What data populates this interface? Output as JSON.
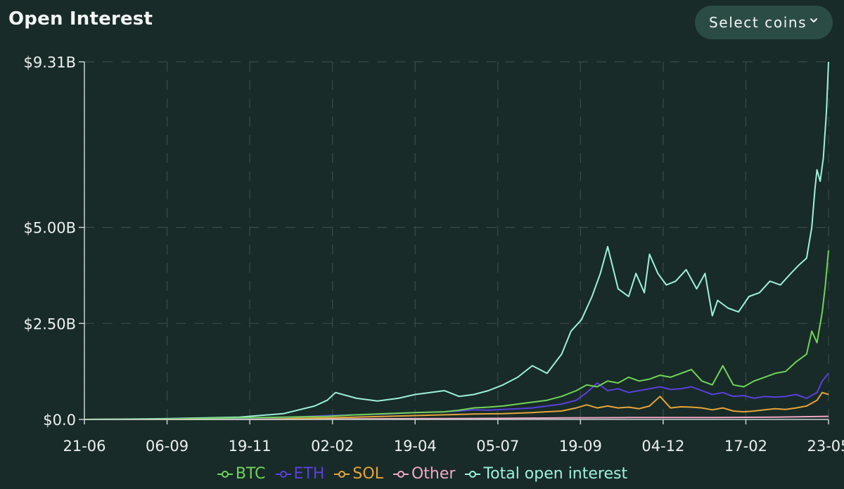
{
  "header": {
    "title": "Open Interest",
    "select_label": "Select coins"
  },
  "colors": {
    "background": "#182b28",
    "button_bg": "#2b4c45",
    "grid": "#3a4b48",
    "axis": "#c9d2d0"
  },
  "icons": {
    "select_chevron": "chevron-down-icon"
  },
  "chart_data": {
    "type": "line",
    "title": "Open Interest",
    "xlabel": "",
    "ylabel": "",
    "grid": true,
    "legend_position": "bottom-center",
    "x_tick_labels": [
      "21-06",
      "06-09",
      "19-11",
      "02-02",
      "19-04",
      "05-07",
      "19-09",
      "04-12",
      "17-02",
      "23-05"
    ],
    "y_ticks": [
      {
        "value": 0,
        "label": "$0.0"
      },
      {
        "value": 2.5,
        "label": "$2.50B"
      },
      {
        "value": 5.0,
        "label": "$5.00B"
      },
      {
        "value": 9.31,
        "label": "$9.31B"
      }
    ],
    "ylim": [
      0,
      9.31
    ],
    "x_unit": "days since 21-06",
    "xlim": [
      0,
      711
    ],
    "series": [
      {
        "name": "BTC",
        "color": "#72d35a",
        "x": [
          0,
          77,
          148,
          190,
          232,
          260,
          288,
          316,
          344,
          358,
          372,
          386,
          400,
          414,
          428,
          442,
          456,
          470,
          480,
          490,
          500,
          510,
          520,
          530,
          540,
          550,
          560,
          570,
          580,
          590,
          600,
          610,
          620,
          630,
          640,
          650,
          660,
          670,
          680,
          690,
          695,
          700,
          705,
          708,
          711
        ],
        "values": [
          0,
          0.01,
          0.04,
          0.06,
          0.08,
          0.12,
          0.15,
          0.18,
          0.2,
          0.24,
          0.3,
          0.32,
          0.35,
          0.4,
          0.45,
          0.5,
          0.6,
          0.75,
          0.9,
          0.85,
          1.0,
          0.95,
          1.1,
          1.0,
          1.05,
          1.15,
          1.1,
          1.2,
          1.3,
          1.0,
          0.9,
          1.4,
          0.9,
          0.85,
          1.0,
          1.1,
          1.2,
          1.25,
          1.5,
          1.7,
          2.3,
          2.0,
          2.8,
          3.5,
          4.4
        ]
      },
      {
        "name": "ETH",
        "color": "#5b3fe0",
        "x": [
          0,
          77,
          148,
          190,
          232,
          260,
          288,
          316,
          344,
          358,
          372,
          386,
          400,
          414,
          428,
          442,
          456,
          470,
          480,
          490,
          500,
          510,
          520,
          530,
          540,
          550,
          560,
          570,
          580,
          590,
          600,
          610,
          620,
          630,
          640,
          650,
          660,
          670,
          680,
          690,
          700,
          705,
          711
        ],
        "values": [
          0,
          0.01,
          0.03,
          0.05,
          0.1,
          0.12,
          0.14,
          0.18,
          0.2,
          0.22,
          0.25,
          0.24,
          0.26,
          0.28,
          0.3,
          0.35,
          0.4,
          0.5,
          0.7,
          0.95,
          0.75,
          0.8,
          0.7,
          0.75,
          0.8,
          0.85,
          0.78,
          0.8,
          0.85,
          0.75,
          0.65,
          0.7,
          0.6,
          0.62,
          0.55,
          0.6,
          0.58,
          0.6,
          0.65,
          0.55,
          0.7,
          1.0,
          1.2
        ]
      },
      {
        "name": "SOL",
        "color": "#e5a53a",
        "x": [
          0,
          77,
          148,
          190,
          232,
          260,
          288,
          316,
          344,
          372,
          400,
          428,
          456,
          470,
          480,
          490,
          500,
          510,
          520,
          530,
          540,
          550,
          560,
          570,
          580,
          590,
          600,
          610,
          620,
          630,
          640,
          650,
          660,
          670,
          680,
          690,
          700,
          705,
          711
        ],
        "values": [
          0,
          0.0,
          0.01,
          0.02,
          0.04,
          0.06,
          0.08,
          0.1,
          0.12,
          0.14,
          0.15,
          0.18,
          0.22,
          0.3,
          0.38,
          0.3,
          0.35,
          0.3,
          0.32,
          0.28,
          0.35,
          0.6,
          0.3,
          0.33,
          0.32,
          0.3,
          0.25,
          0.3,
          0.22,
          0.2,
          0.22,
          0.25,
          0.28,
          0.26,
          0.3,
          0.35,
          0.5,
          0.7,
          0.65
        ]
      },
      {
        "name": "Other",
        "color": "#f2a7c6",
        "x": [
          0,
          148,
          232,
          316,
          400,
          456,
          520,
          600,
          660,
          711
        ],
        "values": [
          0,
          0.0,
          0.01,
          0.02,
          0.03,
          0.04,
          0.05,
          0.05,
          0.06,
          0.08
        ]
      },
      {
        "name": "Total open interest",
        "color": "#9ef0dc",
        "x": [
          0,
          77,
          148,
          190,
          220,
          232,
          240,
          260,
          280,
          300,
          316,
          330,
          344,
          358,
          372,
          386,
          400,
          414,
          428,
          442,
          456,
          465,
          475,
          485,
          493,
          500,
          510,
          520,
          527,
          535,
          540,
          548,
          556,
          565,
          575,
          585,
          593,
          600,
          605,
          615,
          625,
          635,
          645,
          655,
          665,
          675,
          682,
          690,
          695,
          698,
          700,
          703,
          706,
          709,
          711
        ],
        "values": [
          0,
          0.02,
          0.06,
          0.15,
          0.35,
          0.5,
          0.7,
          0.55,
          0.48,
          0.55,
          0.65,
          0.7,
          0.75,
          0.6,
          0.65,
          0.75,
          0.9,
          1.1,
          1.4,
          1.2,
          1.7,
          2.3,
          2.6,
          3.2,
          3.8,
          4.5,
          3.4,
          3.2,
          3.8,
          3.3,
          4.3,
          3.8,
          3.5,
          3.6,
          3.9,
          3.4,
          3.8,
          2.7,
          3.1,
          2.9,
          2.8,
          3.2,
          3.3,
          3.6,
          3.5,
          3.8,
          4.0,
          4.2,
          5.0,
          6.0,
          6.5,
          6.2,
          6.8,
          8.0,
          9.31
        ]
      }
    ]
  }
}
